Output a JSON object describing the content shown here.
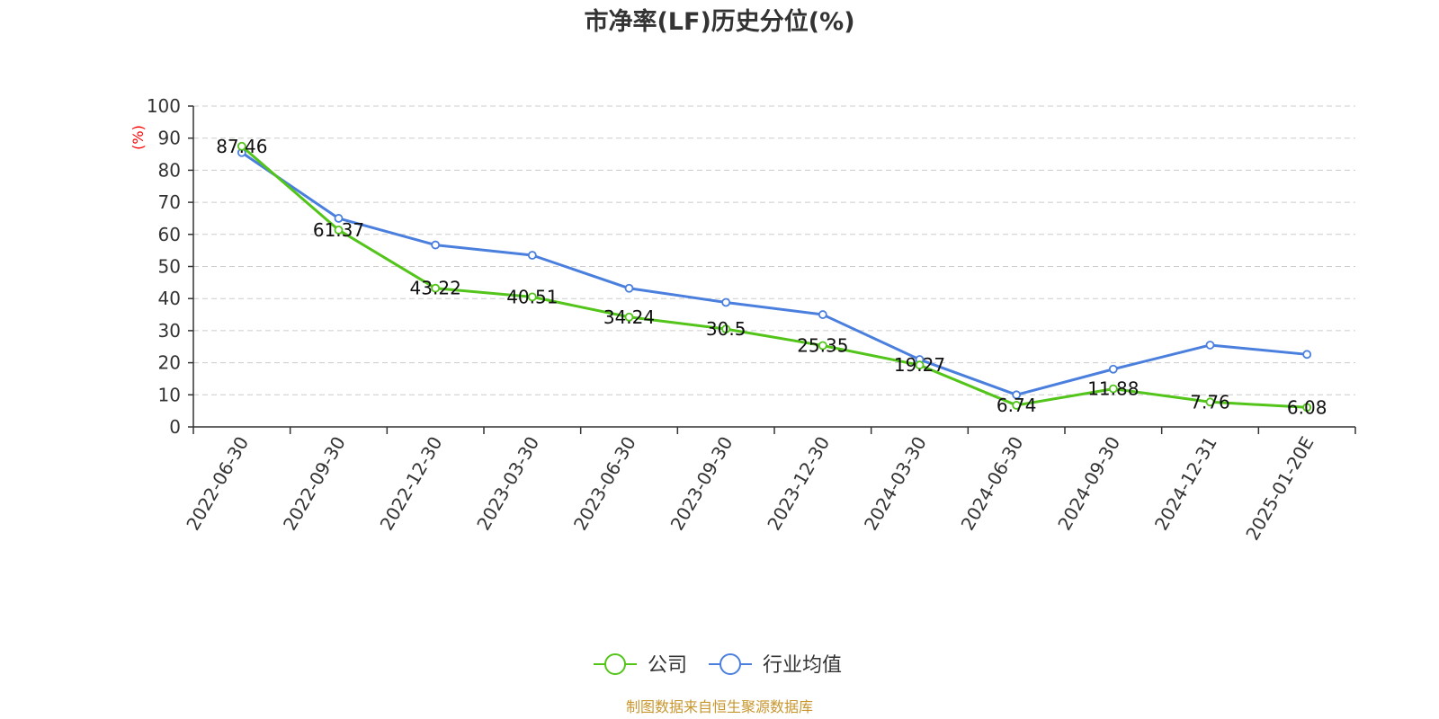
{
  "chart_data": {
    "type": "line",
    "title": "市净率(LF)历史分位(%)",
    "ylabel": "(%)",
    "xlabel": "",
    "ylim": [
      0,
      100
    ],
    "yticks": [
      0,
      10,
      20,
      30,
      40,
      50,
      60,
      70,
      80,
      90,
      100
    ],
    "grid": true,
    "legend_position": "bottom",
    "categories": [
      "2022-06-30",
      "2022-09-30",
      "2022-12-30",
      "2023-03-30",
      "2023-06-30",
      "2023-09-30",
      "2023-12-30",
      "2024-03-30",
      "2024-06-30",
      "2024-09-30",
      "2024-12-31",
      "2025-01-20E"
    ],
    "series": [
      {
        "name": "公司",
        "color": "#52c41a",
        "values": [
          87.46,
          61.37,
          43.22,
          40.51,
          34.24,
          30.5,
          25.35,
          19.27,
          6.74,
          11.88,
          7.76,
          6.08
        ],
        "labels": [
          "87.46",
          "61.37",
          "43.22",
          "40.51",
          "34.24",
          "30.5",
          "25.35",
          "19.27",
          "6.74",
          "11.88",
          "7.76",
          "6.08"
        ]
      },
      {
        "name": "行业均值",
        "color": "#4a7fde",
        "values": [
          85.5,
          65.0,
          56.7,
          53.5,
          43.2,
          38.8,
          35.0,
          21.0,
          10.0,
          18.0,
          25.5,
          22.6
        ]
      }
    ]
  },
  "source": {
    "text": "制图数据来自恒生聚源数据库",
    "color": "#c8962e"
  },
  "ylabel_color": "#ff0000"
}
